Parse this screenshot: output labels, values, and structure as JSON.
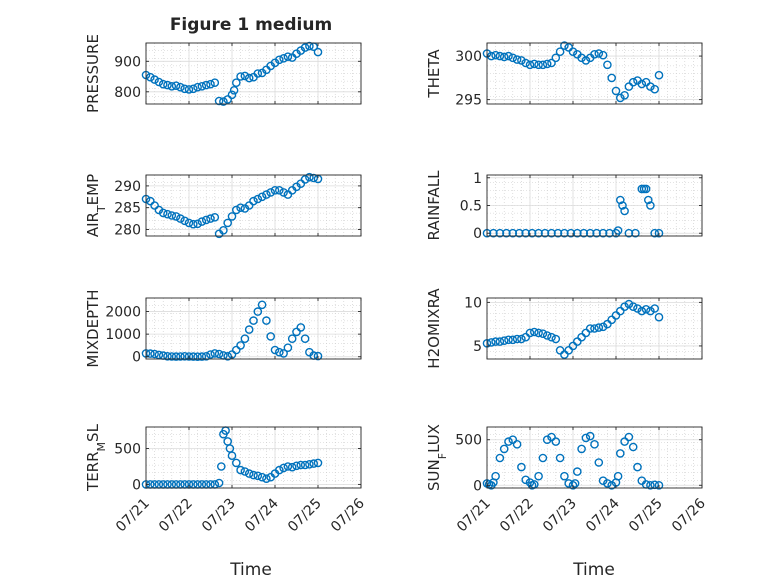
{
  "figure": {
    "title": "Figure 1 medium",
    "xlabel": "Time"
  },
  "colors": {
    "marker": "#0072bd",
    "axis": "#262626",
    "grid": "#c8c8c8",
    "background": "#ffffff"
  },
  "x_ticks": [
    "07/21",
    "07/22",
    "07/23",
    "07/24",
    "07/25",
    "07/26"
  ],
  "chart_data": [
    {
      "id": "pressure",
      "type": "scatter",
      "ylabel": "PRESSURE",
      "ylim": [
        760,
        960
      ],
      "yticks": [
        "800",
        "900"
      ],
      "yticks_values": [
        800,
        900
      ],
      "xlim": [
        0,
        5
      ],
      "grid": true,
      "marker": "circle-open",
      "x": [
        0,
        0.1,
        0.2,
        0.3,
        0.4,
        0.5,
        0.6,
        0.7,
        0.8,
        0.9,
        1.0,
        1.1,
        1.2,
        1.3,
        1.4,
        1.5,
        1.6,
        1.7,
        1.8,
        1.9,
        2.0,
        2.05,
        2.1,
        2.2,
        2.3,
        2.4,
        2.5,
        2.6,
        2.7,
        2.8,
        2.9,
        3.0,
        3.1,
        3.2,
        3.3,
        3.4,
        3.5,
        3.6,
        3.7,
        3.8,
        3.9,
        4.0
      ],
      "y": [
        855,
        848,
        840,
        832,
        825,
        822,
        818,
        820,
        815,
        810,
        808,
        810,
        815,
        818,
        822,
        825,
        830,
        770,
        768,
        775,
        790,
        805,
        830,
        850,
        852,
        845,
        848,
        860,
        862,
        872,
        885,
        895,
        905,
        910,
        915,
        912,
        925,
        935,
        945,
        950,
        948,
        930
      ]
    },
    {
      "id": "theta",
      "type": "scatter",
      "ylabel": "THETA",
      "ylim": [
        294.5,
        301.5
      ],
      "yticks": [
        "295",
        "300"
      ],
      "yticks_values": [
        295,
        300
      ],
      "xlim": [
        0,
        5
      ],
      "grid": true,
      "marker": "circle-open",
      "x": [
        0,
        0.1,
        0.2,
        0.3,
        0.4,
        0.5,
        0.6,
        0.7,
        0.8,
        0.9,
        1.0,
        1.1,
        1.2,
        1.3,
        1.4,
        1.5,
        1.6,
        1.7,
        1.8,
        1.9,
        2.0,
        2.1,
        2.2,
        2.3,
        2.4,
        2.5,
        2.6,
        2.7,
        2.8,
        2.9,
        3.0,
        3.1,
        3.2,
        3.3,
        3.4,
        3.5,
        3.6,
        3.7,
        3.8,
        3.9,
        4.0
      ],
      "y": [
        300.3,
        300.0,
        300.1,
        300.0,
        299.9,
        300.0,
        299.8,
        299.6,
        299.5,
        299.2,
        299.0,
        299.1,
        299.0,
        299.0,
        299.1,
        299.2,
        299.8,
        300.5,
        301.2,
        301.0,
        300.5,
        300.2,
        299.8,
        299.5,
        299.8,
        300.2,
        300.3,
        300.1,
        299.0,
        297.5,
        296.0,
        295.2,
        295.5,
        296.5,
        297.0,
        297.2,
        296.8,
        297.0,
        296.5,
        296.2,
        297.8
      ]
    },
    {
      "id": "air_temp",
      "type": "scatter",
      "ylabel": "AIR_TEMP",
      "ylim": [
        278.5,
        292.5
      ],
      "yticks": [
        "280",
        "285",
        "290"
      ],
      "yticks_values": [
        280,
        285,
        290
      ],
      "xlim": [
        0,
        5
      ],
      "grid": true,
      "marker": "circle-open",
      "x": [
        0,
        0.1,
        0.2,
        0.3,
        0.4,
        0.5,
        0.6,
        0.7,
        0.8,
        0.9,
        1.0,
        1.1,
        1.2,
        1.3,
        1.4,
        1.5,
        1.6,
        1.7,
        1.8,
        1.9,
        2.0,
        2.1,
        2.2,
        2.3,
        2.4,
        2.5,
        2.6,
        2.7,
        2.8,
        2.9,
        3.0,
        3.1,
        3.2,
        3.3,
        3.4,
        3.5,
        3.6,
        3.7,
        3.8,
        3.9,
        4.0
      ],
      "y": [
        287,
        286.5,
        285.5,
        284.5,
        283.8,
        283.5,
        283.2,
        283.0,
        282.5,
        282.0,
        281.5,
        281.2,
        281.3,
        281.8,
        282.2,
        282.5,
        282.8,
        279.0,
        279.8,
        281.5,
        283.0,
        284.5,
        285.0,
        284.8,
        285.5,
        286.5,
        287.0,
        287.5,
        288.0,
        288.5,
        289.0,
        289.0,
        288.5,
        288.0,
        289.0,
        289.8,
        290.5,
        291.5,
        292.0,
        291.8,
        291.6
      ]
    },
    {
      "id": "rainfall",
      "type": "scatter",
      "ylabel": "RAINFALL",
      "ylim": [
        -0.05,
        1.05
      ],
      "yticks": [
        "0",
        "0.5",
        "1"
      ],
      "yticks_values": [
        0,
        0.5,
        1
      ],
      "xlim": [
        0,
        5
      ],
      "grid": true,
      "marker": "circle-open",
      "x": [
        0,
        0.15,
        0.3,
        0.45,
        0.6,
        0.75,
        0.9,
        1.05,
        1.2,
        1.35,
        1.5,
        1.65,
        1.8,
        1.95,
        2.1,
        2.25,
        2.4,
        2.55,
        2.7,
        2.85,
        3.0,
        3.05,
        3.1,
        3.15,
        3.2,
        3.3,
        3.45,
        3.6,
        3.65,
        3.7,
        3.75,
        3.8,
        3.9,
        4.0
      ],
      "y": [
        0,
        0,
        0,
        0,
        0,
        0,
        0,
        0,
        0,
        0,
        0,
        0,
        0,
        0,
        0,
        0,
        0,
        0,
        0,
        0,
        0,
        0.05,
        0.6,
        0.5,
        0.4,
        0,
        0,
        0.8,
        0.8,
        0.8,
        0.6,
        0.5,
        0,
        0
      ]
    },
    {
      "id": "mixdepth",
      "type": "scatter",
      "ylabel": "MIXDEPTH",
      "ylim": [
        -100,
        2600
      ],
      "yticks": [
        "0",
        "1000",
        "2000"
      ],
      "yticks_values": [
        0,
        1000,
        2000
      ],
      "xlim": [
        0,
        5
      ],
      "grid": true,
      "marker": "circle-open",
      "x": [
        0,
        0.1,
        0.2,
        0.3,
        0.4,
        0.5,
        0.6,
        0.7,
        0.8,
        0.9,
        1.0,
        1.1,
        1.2,
        1.3,
        1.4,
        1.5,
        1.6,
        1.7,
        1.8,
        1.9,
        2.0,
        2.1,
        2.2,
        2.3,
        2.4,
        2.5,
        2.6,
        2.7,
        2.8,
        2.9,
        3.0,
        3.1,
        3.2,
        3.3,
        3.4,
        3.5,
        3.6,
        3.7,
        3.8,
        3.9,
        4.0
      ],
      "y": [
        150,
        140,
        120,
        80,
        50,
        20,
        10,
        5,
        10,
        20,
        10,
        5,
        0,
        5,
        20,
        100,
        150,
        120,
        60,
        20,
        100,
        300,
        500,
        800,
        1200,
        1600,
        2000,
        2300,
        1600,
        900,
        300,
        200,
        150,
        400,
        800,
        1100,
        1300,
        800,
        200,
        50,
        30
      ]
    },
    {
      "id": "h2omixra",
      "type": "scatter",
      "ylabel": "H2OMIXRA",
      "ylim": [
        3.5,
        10.5
      ],
      "yticks": [
        "5",
        "10"
      ],
      "yticks_values": [
        5,
        10
      ],
      "xlim": [
        0,
        5
      ],
      "grid": true,
      "marker": "circle-open",
      "x": [
        0,
        0.1,
        0.2,
        0.3,
        0.4,
        0.5,
        0.6,
        0.7,
        0.8,
        0.9,
        1.0,
        1.1,
        1.2,
        1.3,
        1.4,
        1.5,
        1.6,
        1.7,
        1.8,
        1.9,
        2.0,
        2.1,
        2.2,
        2.3,
        2.4,
        2.5,
        2.6,
        2.7,
        2.8,
        2.9,
        3.0,
        3.1,
        3.2,
        3.3,
        3.4,
        3.5,
        3.6,
        3.7,
        3.8,
        3.9,
        4.0
      ],
      "y": [
        5.3,
        5.4,
        5.5,
        5.5,
        5.6,
        5.7,
        5.7,
        5.8,
        5.8,
        6.0,
        6.5,
        6.6,
        6.5,
        6.4,
        6.2,
        6.0,
        5.8,
        4.5,
        4.0,
        4.5,
        5.0,
        5.5,
        6.0,
        6.5,
        7.0,
        7.0,
        7.1,
        7.2,
        7.5,
        8.0,
        8.5,
        9.0,
        9.5,
        9.8,
        9.5,
        9.3,
        9.0,
        9.2,
        9.0,
        9.3,
        8.3
      ]
    },
    {
      "id": "terr_msl",
      "type": "scatter",
      "ylabel": "TERR_MSL",
      "ylim": [
        -50,
        800
      ],
      "yticks": [
        "0",
        "500"
      ],
      "yticks_values": [
        0,
        500
      ],
      "xlim": [
        0,
        5
      ],
      "grid": true,
      "marker": "circle-open",
      "x": [
        0,
        0.1,
        0.2,
        0.3,
        0.4,
        0.5,
        0.6,
        0.7,
        0.8,
        0.9,
        1.0,
        1.1,
        1.2,
        1.3,
        1.4,
        1.5,
        1.6,
        1.7,
        1.75,
        1.8,
        1.85,
        1.9,
        1.95,
        2.0,
        2.1,
        2.2,
        2.3,
        2.4,
        2.5,
        2.6,
        2.7,
        2.8,
        2.9,
        3.0,
        3.1,
        3.2,
        3.3,
        3.4,
        3.5,
        3.6,
        3.7,
        3.8,
        3.9,
        4.0
      ],
      "y": [
        0,
        0,
        0,
        0,
        0,
        0,
        0,
        0,
        0,
        0,
        0,
        0,
        0,
        0,
        0,
        0,
        0,
        20,
        250,
        700,
        750,
        600,
        500,
        400,
        300,
        200,
        180,
        150,
        130,
        120,
        100,
        80,
        100,
        150,
        200,
        230,
        250,
        240,
        260,
        270,
        270,
        280,
        290,
        300
      ]
    },
    {
      "id": "sun_flux",
      "type": "scatter",
      "ylabel": "SUN_FLUX",
      "ylim": [
        -30,
        640
      ],
      "yticks": [
        "0",
        "500"
      ],
      "yticks_values": [
        0,
        500
      ],
      "xlim": [
        0,
        5
      ],
      "grid": true,
      "marker": "circle-open",
      "x": [
        0,
        0.05,
        0.1,
        0.15,
        0.2,
        0.3,
        0.4,
        0.5,
        0.6,
        0.7,
        0.8,
        0.9,
        1.0,
        1.05,
        1.1,
        1.2,
        1.3,
        1.4,
        1.5,
        1.6,
        1.7,
        1.8,
        1.9,
        2.0,
        2.05,
        2.1,
        2.2,
        2.3,
        2.4,
        2.5,
        2.6,
        2.7,
        2.8,
        2.9,
        3.0,
        3.05,
        3.1,
        3.2,
        3.3,
        3.4,
        3.5,
        3.6,
        3.7,
        3.8,
        3.9,
        4.0
      ],
      "y": [
        20,
        10,
        0,
        30,
        100,
        300,
        400,
        480,
        500,
        450,
        200,
        60,
        30,
        0,
        10,
        100,
        300,
        500,
        530,
        480,
        300,
        100,
        20,
        0,
        20,
        150,
        400,
        520,
        540,
        450,
        250,
        50,
        20,
        0,
        30,
        100,
        350,
        480,
        530,
        420,
        200,
        50,
        10,
        0,
        5,
        0
      ]
    }
  ]
}
